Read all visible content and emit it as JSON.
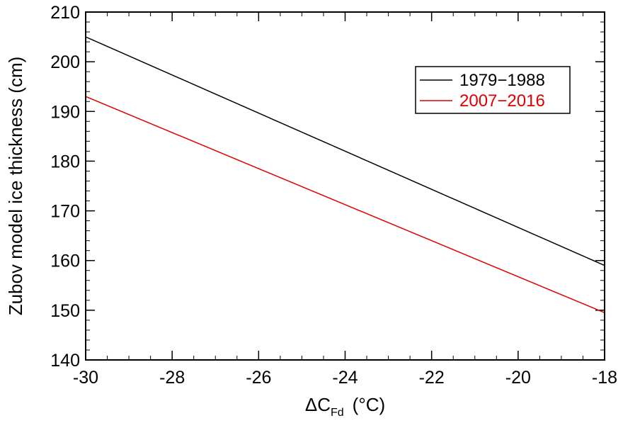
{
  "chart_data": {
    "type": "line",
    "title": "",
    "xlabel": "ΔC",
    "xlabel_subscript": "Fd",
    "xlabel_unit": "(°C)",
    "ylabel": "Zubov model ice thickness (cm)",
    "xlim": [
      -30,
      -18
    ],
    "ylim": [
      140,
      210
    ],
    "x_ticks": [
      -30,
      -28,
      -26,
      -24,
      -22,
      -20,
      -18
    ],
    "y_ticks": [
      140,
      150,
      160,
      170,
      180,
      190,
      200,
      210
    ],
    "x_tick_labels": [
      "-30",
      "-28",
      "-26",
      "-24",
      "-22",
      "-20",
      "-18"
    ],
    "y_tick_labels": [
      "140",
      "150",
      "160",
      "170",
      "180",
      "190",
      "200",
      "210"
    ],
    "x_minor_step": 0.5,
    "y_minor_step": 2,
    "grid": false,
    "legend_position": "top-right",
    "series": [
      {
        "name": "1979−1988",
        "color": "#000000",
        "x": [
          -30,
          -18
        ],
        "y": [
          205,
          159
        ]
      },
      {
        "name": "2007−2016",
        "color": "#e00000",
        "x": [
          -30,
          -18
        ],
        "y": [
          193,
          149.5
        ]
      }
    ]
  }
}
